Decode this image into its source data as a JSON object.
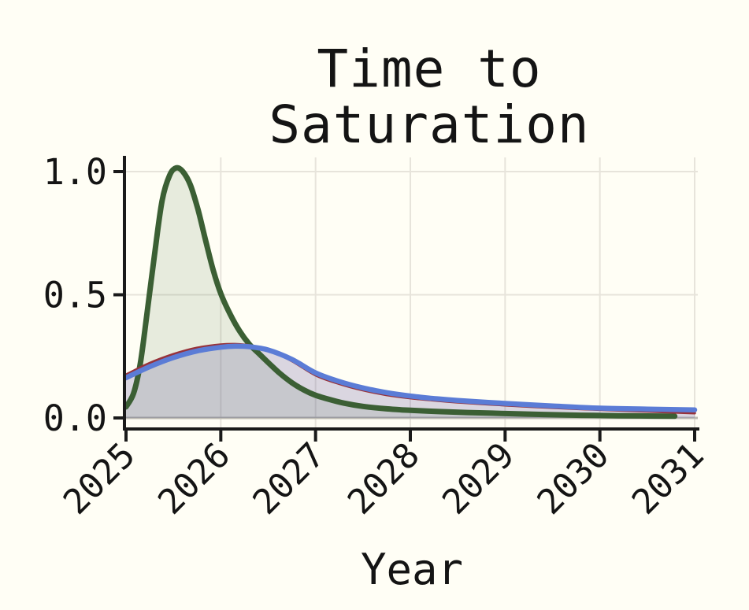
{
  "chart_data": {
    "type": "area",
    "title_lines": [
      "Time to",
      "Saturation"
    ],
    "title": "Time to Saturation",
    "xlabel": "Year",
    "ylabel": "",
    "xlim": [
      2025,
      2031.05
    ],
    "ylim": [
      0,
      1.1
    ],
    "grid": true,
    "legend": "none",
    "xticks": {
      "values": [
        2025,
        2026,
        2027,
        2028,
        2029,
        2030,
        2031
      ],
      "labels": [
        "2025",
        "2026",
        "2027",
        "2028",
        "2029",
        "2030",
        "2031"
      ]
    },
    "yticks": {
      "values": [
        0.0,
        0.5,
        1.0
      ],
      "labels": [
        "0.0",
        "0.5",
        "1.0"
      ]
    },
    "colors": {
      "background": "#FFFEF5",
      "axis": "#1A1A1A",
      "grid": "#E7E4DB",
      "baseline": "#BCBAB2",
      "text": "#141414"
    },
    "series": [
      {
        "name": "green",
        "color": "#3B5F34",
        "fill_opacity": 0.12,
        "line_width": 7,
        "x": [
          2025.0,
          2025.08,
          2025.15,
          2025.22,
          2025.3,
          2025.38,
          2025.46,
          2025.53,
          2025.6,
          2025.68,
          2025.76,
          2025.84,
          2025.92,
          2026.0,
          2026.1,
          2026.2,
          2026.3,
          2026.4,
          2026.5,
          2026.62,
          2026.75,
          2026.88,
          2027.0,
          2027.12,
          2027.3,
          2027.5,
          2027.75,
          2028.0,
          2028.3,
          2028.6,
          2029.0,
          2029.4,
          2029.8,
          2030.2,
          2030.5,
          2030.79
        ],
        "y": [
          0.045,
          0.1,
          0.22,
          0.42,
          0.66,
          0.88,
          0.985,
          1.015,
          1.0,
          0.945,
          0.845,
          0.72,
          0.6,
          0.505,
          0.42,
          0.352,
          0.3,
          0.262,
          0.225,
          0.182,
          0.143,
          0.113,
          0.092,
          0.078,
          0.06,
          0.047,
          0.037,
          0.031,
          0.026,
          0.022,
          0.018,
          0.014,
          0.011,
          0.009,
          0.008,
          0.007
        ]
      },
      {
        "name": "red",
        "color": "#97323A",
        "fill_opacity": 0.1,
        "line_width": 3.5,
        "x": [
          2025.0,
          2025.25,
          2025.5,
          2025.75,
          2026.0,
          2026.15,
          2026.3,
          2026.5,
          2026.75,
          2027.0,
          2027.25,
          2027.5,
          2027.75,
          2028.0,
          2028.25,
          2028.5,
          2029.0,
          2029.5,
          2030.0,
          2030.5,
          2031.0
        ],
        "y": [
          0.175,
          0.222,
          0.258,
          0.284,
          0.297,
          0.299,
          0.294,
          0.276,
          0.232,
          0.174,
          0.139,
          0.113,
          0.094,
          0.081,
          0.072,
          0.064,
          0.052,
          0.042,
          0.034,
          0.027,
          0.02
        ]
      },
      {
        "name": "blue",
        "color": "#5B7CD6",
        "fill_opacity": 0.17,
        "line_width": 6.5,
        "x": [
          2025.0,
          2025.25,
          2025.5,
          2025.75,
          2026.0,
          2026.15,
          2026.3,
          2026.5,
          2026.75,
          2027.0,
          2027.25,
          2027.5,
          2027.75,
          2028.0,
          2028.25,
          2028.5,
          2029.0,
          2029.5,
          2030.0,
          2030.5,
          2031.0
        ],
        "y": [
          0.163,
          0.208,
          0.245,
          0.272,
          0.287,
          0.291,
          0.289,
          0.276,
          0.238,
          0.183,
          0.148,
          0.122,
          0.103,
          0.089,
          0.079,
          0.071,
          0.059,
          0.049,
          0.04,
          0.036,
          0.033
        ]
      }
    ]
  }
}
